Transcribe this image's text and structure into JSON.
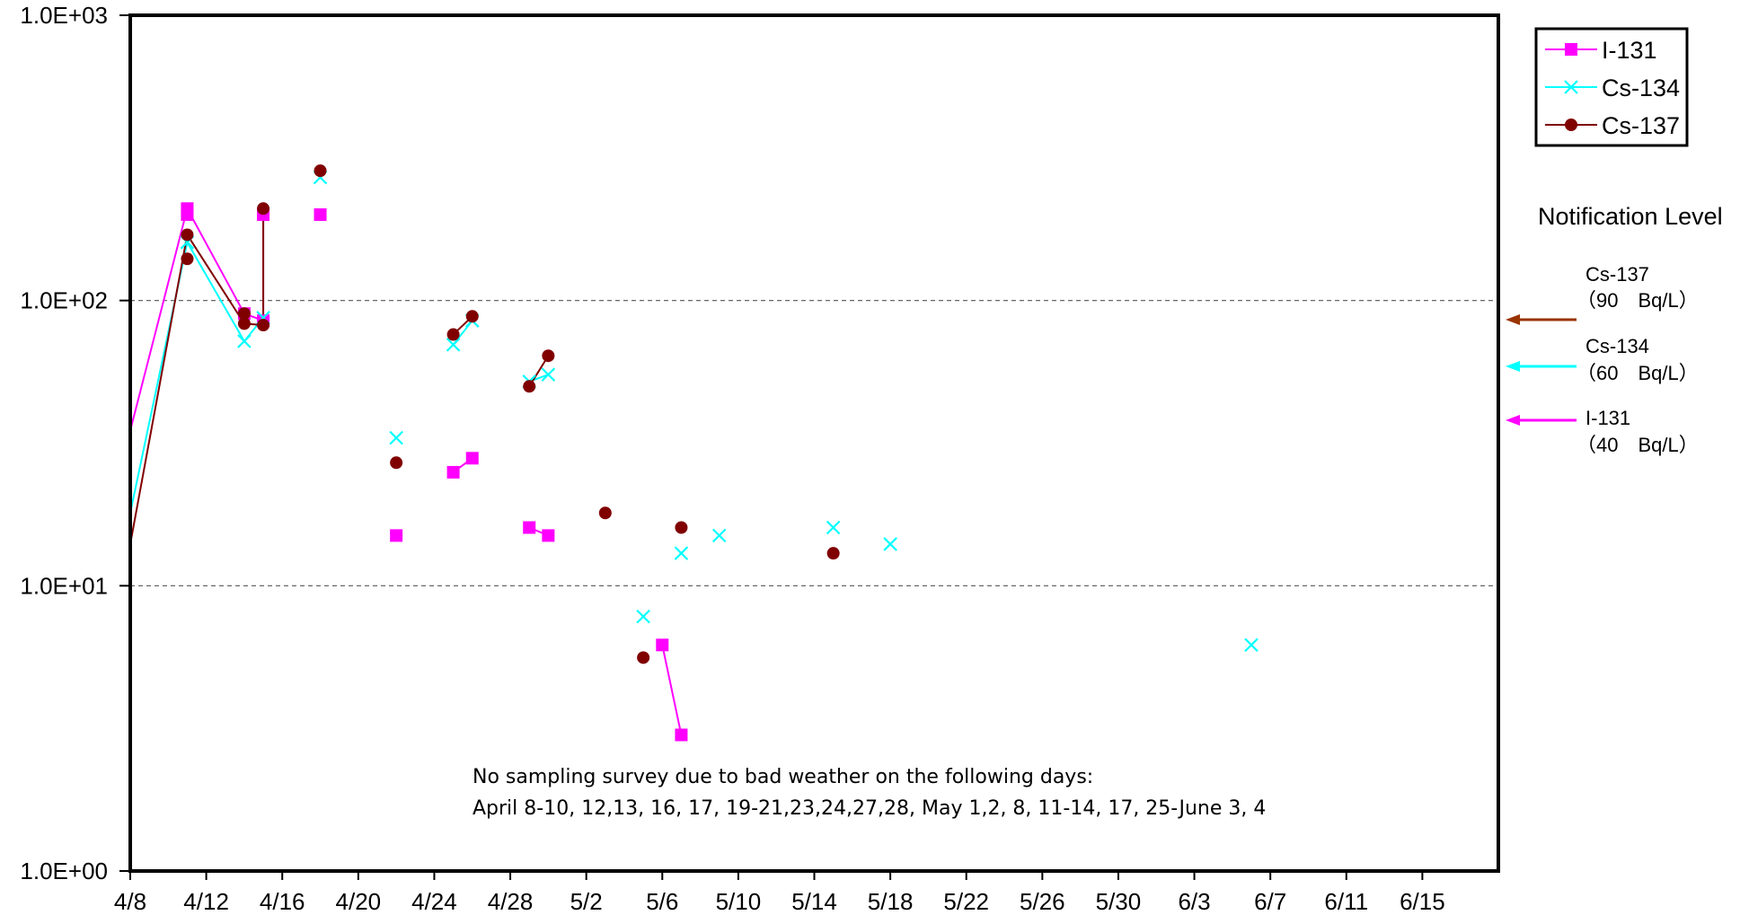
{
  "chart_data": {
    "type": "scatter",
    "x_axis": {
      "type": "date",
      "range": [
        "2011-04-08",
        "2011-06-19"
      ],
      "tick_labels": [
        "4/8",
        "4/12",
        "4/16",
        "4/20",
        "4/24",
        "4/28",
        "5/2",
        "5/6",
        "5/10",
        "5/14",
        "5/18",
        "5/22",
        "5/26",
        "5/30",
        "6/3",
        "6/7",
        "6/11",
        "6/15"
      ],
      "tick_dates": [
        "2011-04-08",
        "2011-04-12",
        "2011-04-16",
        "2011-04-20",
        "2011-04-24",
        "2011-04-28",
        "2011-05-02",
        "2011-05-06",
        "2011-05-10",
        "2011-05-14",
        "2011-05-18",
        "2011-05-22",
        "2011-05-26",
        "2011-05-30",
        "2011-06-03",
        "2011-06-07",
        "2011-06-11",
        "2011-06-15"
      ]
    },
    "y_axis": {
      "scale": "log",
      "range": [
        1,
        1000
      ],
      "tick_values": [
        1,
        10,
        100,
        1000
      ],
      "tick_labels": [
        "1.0E+00",
        "1.0E+01",
        "1.0E+02",
        "1.0E+03"
      ]
    },
    "gridlines": "dashed at 1.0E+01 and 1.0E+02",
    "legend_position": "top-right, outside plot",
    "series": [
      {
        "name": "I-131",
        "color": "#ff00ff",
        "marker": "square",
        "segments": [
          [
            [
              "2011-04-07",
              35
            ],
            [
              "2011-04-11",
              210
            ],
            [
              "2011-04-14",
              90
            ],
            [
              "2011-04-15",
              85
            ],
            [
              "2011-04-15",
              200
            ]
          ],
          [
            [
              "2011-04-25",
              25
            ],
            [
              "2011-04-26",
              28
            ]
          ],
          [
            [
              "2011-04-29",
              16
            ],
            [
              "2011-04-30",
              15
            ]
          ],
          [
            [
              "2011-05-06",
              6.2
            ],
            [
              "2011-05-07",
              3
            ]
          ]
        ],
        "points": [
          [
            "2011-04-11",
            210
          ],
          [
            "2011-04-11",
            200
          ],
          [
            "2011-04-14",
            90
          ],
          [
            "2011-04-15",
            85
          ],
          [
            "2011-04-15",
            200
          ],
          [
            "2011-04-18",
            200
          ],
          [
            "2011-04-22",
            15
          ],
          [
            "2011-04-25",
            25
          ],
          [
            "2011-04-26",
            28
          ],
          [
            "2011-04-29",
            16
          ],
          [
            "2011-04-30",
            15
          ],
          [
            "2011-05-06",
            6.2
          ],
          [
            "2011-05-07",
            3
          ]
        ]
      },
      {
        "name": "Cs-134",
        "color": "#00ffff",
        "marker": "x",
        "segments": [
          [
            [
              "2011-04-07",
              18
            ],
            [
              "2011-04-11",
              160
            ],
            [
              "2011-04-14",
              72
            ],
            [
              "2011-04-15",
              87
            ]
          ],
          [
            [
              "2011-04-25",
              70
            ],
            [
              "2011-04-26",
              85
            ]
          ],
          [
            [
              "2011-04-29",
              52
            ],
            [
              "2011-04-30",
              55
            ]
          ]
        ],
        "points": [
          [
            "2011-04-11",
            160
          ],
          [
            "2011-04-14",
            72
          ],
          [
            "2011-04-15",
            87
          ],
          [
            "2011-04-18",
            270
          ],
          [
            "2011-04-22",
            33
          ],
          [
            "2011-04-25",
            70
          ],
          [
            "2011-04-26",
            85
          ],
          [
            "2011-04-29",
            52
          ],
          [
            "2011-04-30",
            55
          ],
          [
            "2011-05-05",
            7.8
          ],
          [
            "2011-05-07",
            13
          ],
          [
            "2011-05-09",
            15
          ],
          [
            "2011-05-15",
            16
          ],
          [
            "2011-05-18",
            14
          ],
          [
            "2011-06-06",
            6.2
          ]
        ]
      },
      {
        "name": "Cs-137",
        "color": "#800000",
        "marker": "circle",
        "segments": [
          [
            [
              "2011-04-07",
              14
            ],
            [
              "2011-04-11",
              170
            ],
            [
              "2011-04-14",
              83
            ],
            [
              "2011-04-15",
              82
            ],
            [
              "2011-04-15",
              210
            ]
          ],
          [
            [
              "2011-04-25",
              76
            ],
            [
              "2011-04-26",
              88
            ]
          ],
          [
            [
              "2011-04-29",
              50
            ],
            [
              "2011-04-30",
              64
            ]
          ]
        ],
        "points": [
          [
            "2011-04-11",
            170
          ],
          [
            "2011-04-11",
            140
          ],
          [
            "2011-04-14",
            90
          ],
          [
            "2011-04-14",
            83
          ],
          [
            "2011-04-15",
            82
          ],
          [
            "2011-04-15",
            210
          ],
          [
            "2011-04-18",
            285
          ],
          [
            "2011-04-22",
            27
          ],
          [
            "2011-04-25",
            76
          ],
          [
            "2011-04-26",
            88
          ],
          [
            "2011-04-29",
            50
          ],
          [
            "2011-04-30",
            64
          ],
          [
            "2011-05-03",
            18
          ],
          [
            "2011-05-05",
            5.6
          ],
          [
            "2011-05-07",
            16
          ],
          [
            "2011-05-15",
            13
          ]
        ]
      }
    ],
    "notification": {
      "title": "Notification Level",
      "levels": [
        {
          "nuclide": "Cs-137",
          "label": "（90　Bq/L）",
          "value": 90,
          "color": "#993300"
        },
        {
          "nuclide": "Cs-134",
          "label": "（60　Bq/L）",
          "value": 60,
          "color": "#00ffff"
        },
        {
          "nuclide": "I-131",
          "label": "（40　Bq/L）",
          "value": 40,
          "color": "#ff00ff"
        }
      ]
    },
    "annotation": {
      "line1": "No sampling survey due to bad weather on the following days:",
      "line2": "April 8-10, 12,13, 16, 17, 19-21,23,24,27,28, May 1,2, 8, 11-14, 17, 25-June 3, 4"
    }
  }
}
